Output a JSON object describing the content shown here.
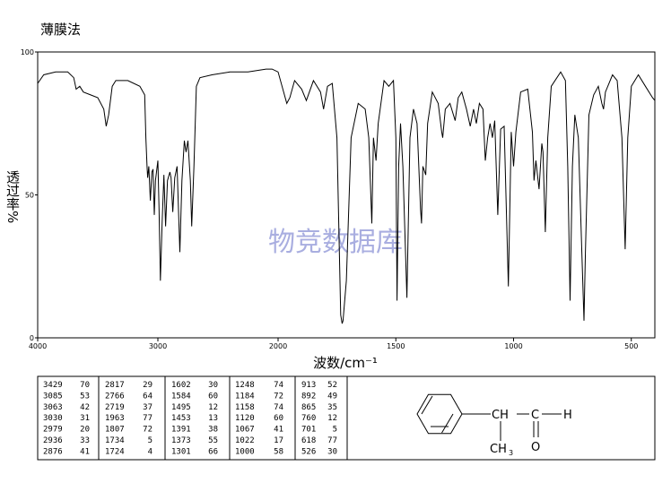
{
  "chart_data": {
    "type": "line",
    "title": "薄膜法",
    "xlabel": "波数/cm⁻¹",
    "ylabel": "透过率%",
    "watermark": "物竞数据库",
    "xlim": [
      4000,
      400
    ],
    "x_scale_break": 2000,
    "ylim": [
      0,
      100
    ],
    "xticks": [
      4000,
      3000,
      2000,
      1500,
      1000,
      500
    ],
    "yticks": [
      0,
      50,
      100
    ],
    "color": "#000000",
    "x": [
      4000,
      3950,
      3850,
      3750,
      3700,
      3680,
      3650,
      3620,
      3560,
      3500,
      3450,
      3430,
      3410,
      3380,
      3350,
      3250,
      3150,
      3110,
      3100,
      3090,
      3085,
      3075,
      3063,
      3050,
      3040,
      3030,
      3020,
      3000,
      2990,
      2979,
      2965,
      2950,
      2936,
      2920,
      2900,
      2890,
      2876,
      2860,
      2840,
      2817,
      2800,
      2780,
      2766,
      2750,
      2730,
      2719,
      2700,
      2680,
      2650,
      2550,
      2400,
      2250,
      2100,
      2050,
      2000,
      1963,
      1950,
      1930,
      1900,
      1880,
      1850,
      1820,
      1807,
      1790,
      1770,
      1750,
      1740,
      1734,
      1728,
      1724,
      1710,
      1690,
      1660,
      1630,
      1615,
      1602,
      1595,
      1584,
      1575,
      1550,
      1530,
      1510,
      1500,
      1495,
      1488,
      1480,
      1470,
      1453,
      1440,
      1425,
      1410,
      1395,
      1391,
      1385,
      1373,
      1365,
      1345,
      1320,
      1305,
      1301,
      1290,
      1270,
      1248,
      1235,
      1220,
      1200,
      1184,
      1170,
      1158,
      1145,
      1130,
      1120,
      1110,
      1100,
      1090,
      1080,
      1067,
      1055,
      1040,
      1022,
      1010,
      1000,
      990,
      970,
      940,
      920,
      913,
      905,
      892,
      880,
      875,
      865,
      855,
      840,
      800,
      780,
      770,
      760,
      750,
      740,
      725,
      710,
      701,
      695,
      680,
      660,
      640,
      625,
      618,
      610,
      580,
      560,
      540,
      526,
      515,
      500,
      470,
      440,
      410,
      400
    ],
    "y": [
      89,
      92,
      93,
      93,
      91,
      87,
      88,
      86,
      85,
      84,
      80,
      74,
      78,
      88,
      90,
      90,
      88,
      85,
      70,
      60,
      56,
      60,
      48,
      58,
      59,
      43,
      55,
      62,
      45,
      20,
      40,
      57,
      39,
      55,
      58,
      56,
      44,
      56,
      60,
      30,
      55,
      69,
      65,
      69,
      55,
      39,
      60,
      88,
      91,
      92,
      93,
      93,
      94,
      94,
      93,
      82,
      84,
      90,
      87,
      83,
      90,
      86,
      80,
      88,
      89,
      70,
      30,
      8,
      5,
      6,
      20,
      70,
      82,
      80,
      70,
      40,
      70,
      62,
      75,
      90,
      88,
      90,
      70,
      13,
      60,
      75,
      60,
      14,
      70,
      80,
      75,
      45,
      40,
      60,
      57,
      75,
      86,
      82,
      72,
      70,
      80,
      82,
      76,
      84,
      86,
      80,
      74,
      80,
      75,
      82,
      80,
      62,
      70,
      75,
      70,
      76,
      43,
      73,
      74,
      18,
      72,
      60,
      72,
      86,
      87,
      72,
      55,
      62,
      52,
      68,
      65,
      37,
      70,
      88,
      93,
      90,
      60,
      13,
      60,
      78,
      70,
      30,
      6,
      30,
      78,
      85,
      88,
      82,
      80,
      86,
      92,
      90,
      70,
      31,
      70,
      88,
      92,
      88,
      84,
      83
    ]
  },
  "table": {
    "rows": [
      [
        3429,
        70,
        2817,
        29,
        1602,
        30,
        1248,
        74,
        913,
        52
      ],
      [
        3085,
        53,
        2766,
        64,
        1584,
        60,
        1184,
        72,
        892,
        49
      ],
      [
        3063,
        42,
        2719,
        37,
        1495,
        12,
        1158,
        74,
        865,
        35
      ],
      [
        3030,
        31,
        1963,
        77,
        1453,
        13,
        1120,
        60,
        760,
        12
      ],
      [
        2979,
        20,
        1807,
        72,
        1391,
        38,
        1067,
        41,
        701,
        5
      ],
      [
        2936,
        33,
        1734,
        5,
        1373,
        55,
        1022,
        17,
        618,
        77
      ],
      [
        2876,
        41,
        1724,
        4,
        1301,
        66,
        1000,
        58,
        526,
        30
      ]
    ]
  },
  "structure": {
    "ch": "CH",
    "c": "C",
    "h": "H",
    "o": "O",
    "ch3": "CH",
    "ch3_sub": "3"
  }
}
